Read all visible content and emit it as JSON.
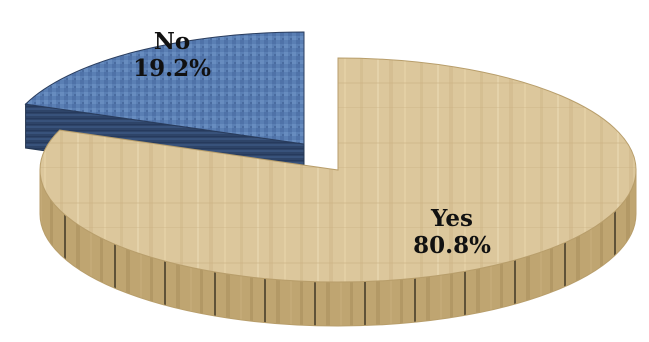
{
  "chart_data": {
    "type": "pie",
    "style": "3d-exploded",
    "slices": [
      {
        "label": "Yes",
        "value": 80.8,
        "value_label": "80.8%",
        "color": "#d8c49a"
      },
      {
        "label": "No",
        "value": 19.2,
        "value_label": "19.2%",
        "color": "#5878ab"
      }
    ],
    "title": "",
    "legend": "none"
  }
}
